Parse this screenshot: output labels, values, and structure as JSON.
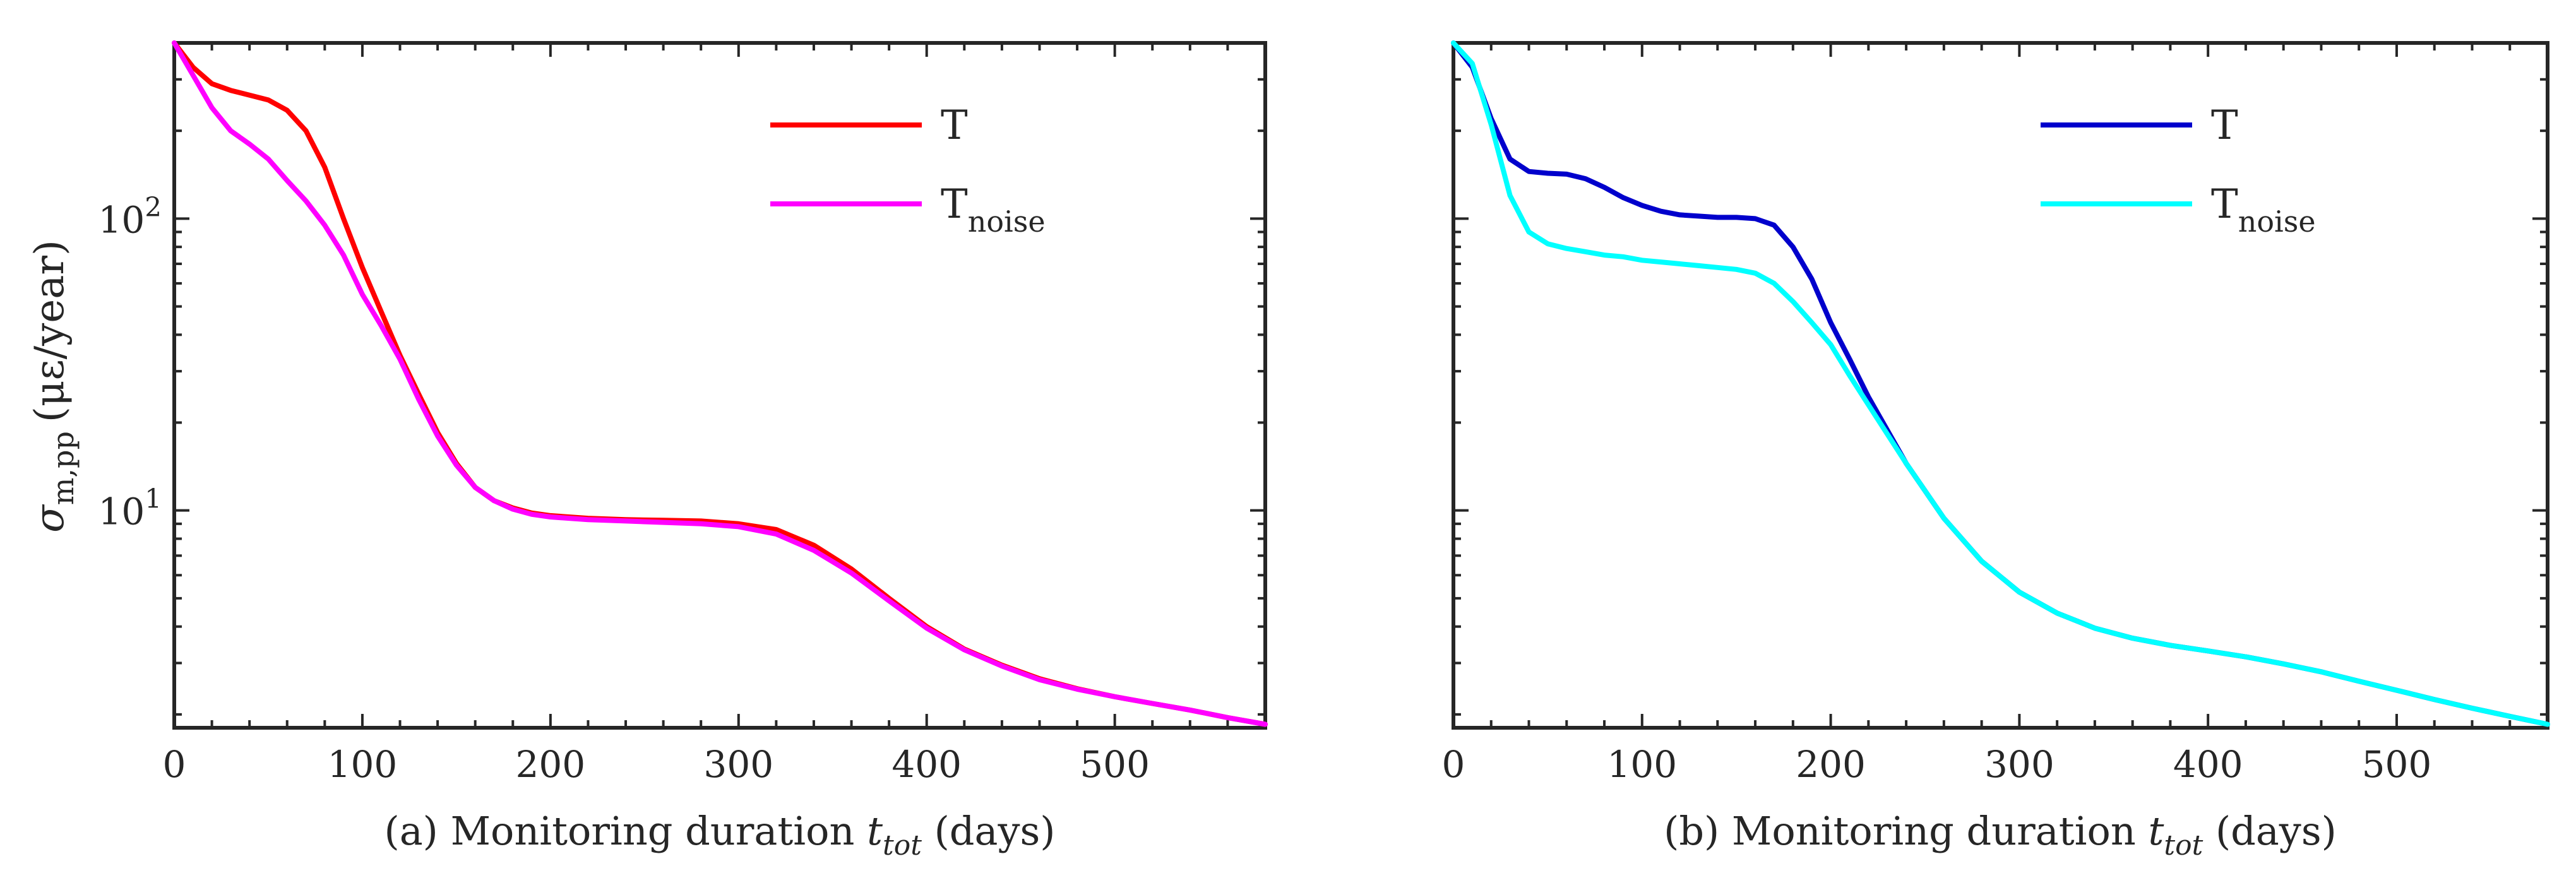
{
  "chart_data": [
    {
      "type": "line",
      "panel": "a",
      "y_scale": "log",
      "xlabel": "(a) Monitoring duration t_tot (days)",
      "xlabel_parts": {
        "prefix": "(a) Monitoring duration ",
        "var": "t",
        "sub": "tot",
        "suffix": " (days)"
      },
      "ylabel": "σ_{m,pp} (με/year)",
      "ylabel_parts": {
        "sigma": "σ",
        "sub": "m,pp",
        "unit": "(με/year)"
      },
      "xlim": [
        0,
        580
      ],
      "ylim": [
        1.8,
        400
      ],
      "xticks": [
        "0",
        "100",
        "200",
        "300",
        "400",
        "500"
      ],
      "xtick_values": [
        0,
        100,
        200,
        300,
        400,
        500
      ],
      "ytick_labels": [
        {
          "base": "10",
          "exp": "1",
          "value": 10
        },
        {
          "base": "10",
          "exp": "2",
          "value": 100
        }
      ],
      "legend_position": "top-right",
      "series": [
        {
          "name": "T",
          "name_sub": "",
          "color": "#ff0000",
          "x": [
            0,
            10,
            20,
            30,
            40,
            50,
            60,
            70,
            80,
            90,
            100,
            110,
            120,
            130,
            140,
            150,
            160,
            170,
            180,
            190,
            200,
            220,
            240,
            260,
            280,
            300,
            320,
            340,
            360,
            380,
            400,
            420,
            440,
            460,
            480,
            500,
            520,
            540,
            560,
            580
          ],
          "y": [
            400,
            330,
            290,
            275,
            265,
            255,
            235,
            200,
            150,
            100,
            68,
            48,
            34,
            25,
            18.5,
            14.5,
            12.0,
            10.8,
            10.2,
            9.8,
            9.6,
            9.4,
            9.3,
            9.25,
            9.2,
            9.0,
            8.6,
            7.6,
            6.3,
            5.0,
            4.0,
            3.35,
            2.95,
            2.65,
            2.45,
            2.3,
            2.18,
            2.07,
            1.95,
            1.85
          ]
        },
        {
          "name": "T",
          "name_sub": "noise",
          "color": "#ff00ff",
          "x": [
            0,
            10,
            20,
            30,
            40,
            50,
            60,
            70,
            80,
            90,
            100,
            110,
            120,
            130,
            140,
            150,
            160,
            170,
            180,
            190,
            200,
            220,
            240,
            260,
            280,
            300,
            320,
            340,
            360,
            380,
            400,
            420,
            440,
            460,
            480,
            500,
            520,
            540,
            560,
            580
          ],
          "y": [
            400,
            310,
            240,
            200,
            180,
            160,
            135,
            115,
            95,
            75,
            55,
            43,
            33,
            24,
            18.0,
            14.3,
            12.0,
            10.8,
            10.1,
            9.7,
            9.5,
            9.3,
            9.2,
            9.1,
            9.0,
            8.8,
            8.3,
            7.3,
            6.1,
            4.9,
            3.95,
            3.33,
            2.93,
            2.63,
            2.44,
            2.3,
            2.18,
            2.07,
            1.95,
            1.85
          ]
        }
      ]
    },
    {
      "type": "line",
      "panel": "b",
      "y_scale": "log",
      "xlabel": "(b) Monitoring duration t_tot (days)",
      "xlabel_parts": {
        "prefix": "(b) Monitoring duration ",
        "var": "t",
        "sub": "tot",
        "suffix": " (days)"
      },
      "xlim": [
        0,
        580
      ],
      "ylim": [
        1.8,
        400
      ],
      "xticks": [
        "0",
        "100",
        "200",
        "300",
        "400",
        "500"
      ],
      "xtick_values": [
        0,
        100,
        200,
        300,
        400,
        500
      ],
      "legend_position": "top-right",
      "series": [
        {
          "name": "T",
          "name_sub": "",
          "color": "#0000cc",
          "x": [
            0,
            10,
            20,
            30,
            40,
            50,
            60,
            70,
            80,
            90,
            100,
            110,
            120,
            130,
            140,
            150,
            160,
            170,
            180,
            190,
            200,
            210,
            220,
            240,
            260,
            280,
            300,
            320,
            340,
            360,
            380,
            400,
            420,
            440,
            460,
            480,
            500,
            520,
            540,
            560,
            580
          ],
          "y": [
            400,
            330,
            220,
            160,
            145,
            143,
            142,
            137,
            128,
            118,
            111,
            106,
            103,
            102,
            101,
            101,
            100,
            95,
            80,
            62,
            44,
            33,
            24.5,
            14.5,
            9.4,
            6.7,
            5.25,
            4.45,
            3.95,
            3.65,
            3.45,
            3.3,
            3.15,
            2.98,
            2.8,
            2.6,
            2.42,
            2.25,
            2.1,
            1.97,
            1.85
          ]
        },
        {
          "name": "T",
          "name_sub": "noise",
          "color": "#00ffff",
          "x": [
            0,
            10,
            20,
            30,
            40,
            50,
            60,
            70,
            80,
            90,
            100,
            110,
            120,
            130,
            140,
            150,
            160,
            170,
            180,
            190,
            200,
            210,
            220,
            240,
            260,
            280,
            300,
            320,
            340,
            360,
            380,
            400,
            420,
            440,
            460,
            480,
            500,
            520,
            540,
            560,
            580
          ],
          "y": [
            400,
            340,
            210,
            120,
            90,
            82,
            79,
            77,
            75,
            74,
            72,
            71,
            70,
            69,
            68,
            67,
            65,
            60,
            52,
            44,
            37,
            29,
            23,
            14.5,
            9.4,
            6.7,
            5.25,
            4.45,
            3.95,
            3.65,
            3.45,
            3.3,
            3.15,
            2.98,
            2.8,
            2.6,
            2.42,
            2.25,
            2.1,
            1.97,
            1.85
          ]
        }
      ]
    }
  ]
}
